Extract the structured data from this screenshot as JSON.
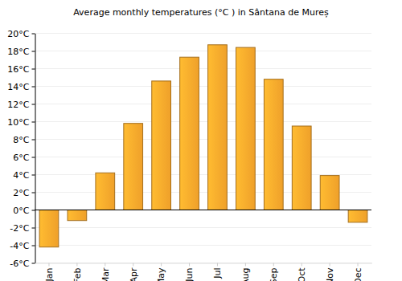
{
  "chart_data": {
    "type": "bar",
    "title": "Average monthly temperatures (°C ) in Sântana de Mureș",
    "categories": [
      "Jan",
      "Feb",
      "Mar",
      "Apr",
      "May",
      "Jun",
      "Jul",
      "Aug",
      "Sep",
      "Oct",
      "Nov",
      "Dec"
    ],
    "values": [
      -4.2,
      -1.2,
      4.2,
      9.8,
      14.6,
      17.3,
      18.7,
      18.4,
      14.8,
      9.5,
      3.9,
      -1.4
    ],
    "color": "#fca92c",
    "ylim": [
      -6,
      20
    ],
    "yticks": [
      {
        "value": -6,
        "label": "-6°C"
      },
      {
        "value": -4,
        "label": "-4°C"
      },
      {
        "value": -2,
        "label": "-2°C"
      },
      {
        "value": 0,
        "label": "0°C"
      },
      {
        "value": 2,
        "label": "2°C"
      },
      {
        "value": 4,
        "label": "4°C"
      },
      {
        "value": 6,
        "label": "6°C"
      },
      {
        "value": 8,
        "label": "8°C"
      },
      {
        "value": 10,
        "label": "10°C"
      },
      {
        "value": 12,
        "label": "12°C"
      },
      {
        "value": 14,
        "label": "14°C"
      },
      {
        "value": 16,
        "label": "16°C"
      },
      {
        "value": 18,
        "label": "18°C"
      },
      {
        "value": 20,
        "label": "20°C"
      }
    ],
    "grid": true
  }
}
